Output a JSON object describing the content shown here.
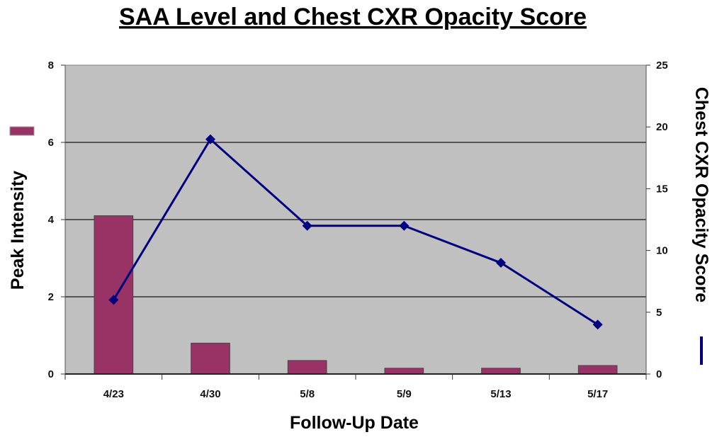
{
  "chart_data": {
    "type": "bar",
    "title": "SAA Level and Chest CXR Opacity Score",
    "xlabel": "Follow-Up Date",
    "ylabel": "Peak Intensity",
    "y2label": "Chest CXR Opacity Score",
    "categories": [
      "4/23",
      "4/30",
      "5/8",
      "5/9",
      "5/13",
      "5/17"
    ],
    "ylim": [
      0,
      8
    ],
    "y2lim": [
      0,
      25
    ],
    "yticks": [
      "0",
      "2",
      "4",
      "6",
      "8"
    ],
    "y2ticks": [
      "0",
      "5",
      "10",
      "15",
      "20",
      "25"
    ],
    "grid": true,
    "series": [
      {
        "type": "bar",
        "axis": "left",
        "values": [
          4.1,
          0.8,
          0.35,
          0.15,
          0.15,
          0.22
        ]
      },
      {
        "type": "line",
        "axis": "right",
        "values": [
          6,
          19,
          12,
          12,
          9,
          4
        ]
      }
    ],
    "colors": {
      "bar": "#993366",
      "line": "#000080",
      "plot_bg": "#c0c0c0",
      "gridline": "#555555"
    }
  }
}
